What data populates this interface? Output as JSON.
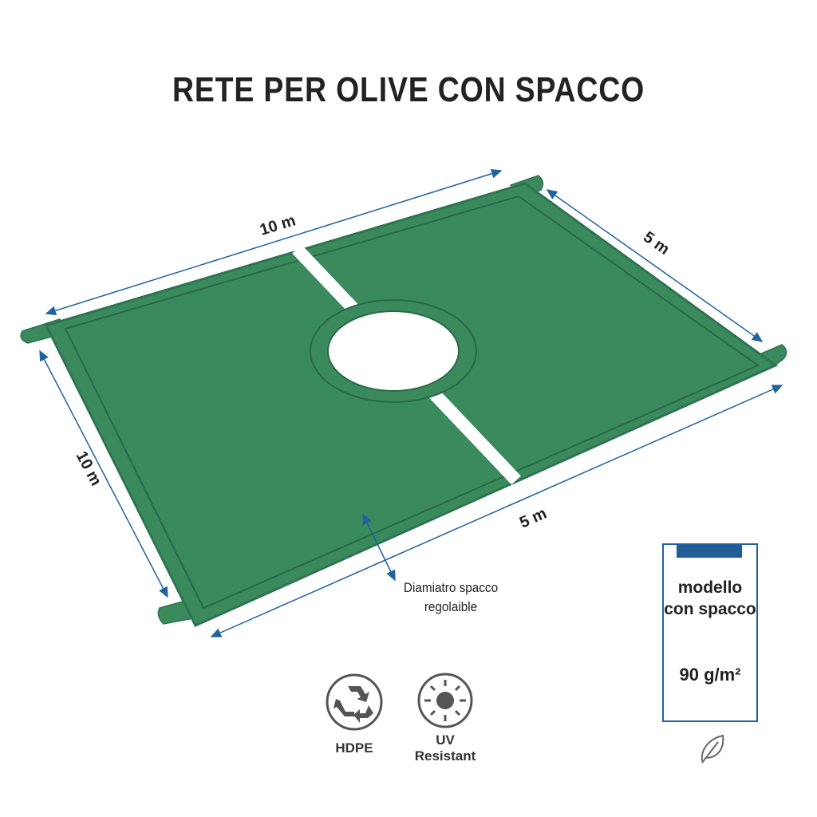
{
  "title": "RETE PER OLIVE CON SPACCO",
  "dimensions": {
    "top_length": "10 m",
    "right_width": "5 m",
    "left_length": "10 m",
    "bottom_width": "5 m"
  },
  "callout": {
    "line1": "Diamiatro spacco",
    "line2": "regolaible"
  },
  "badges": [
    {
      "icon": "recycle-icon",
      "label": "HDPE"
    },
    {
      "icon": "sun-icon",
      "label_line1": "UV",
      "label_line2": "Resistant"
    }
  ],
  "spec_card": {
    "model_line1": "modello",
    "model_line2": "con spacco",
    "weight": "90 g/m²",
    "icon": "leaf-icon"
  },
  "colors": {
    "net_green": "#3a8a5e",
    "net_border": "#2e7450",
    "dimension_blue": "#1f63a0",
    "text": "#222222"
  }
}
